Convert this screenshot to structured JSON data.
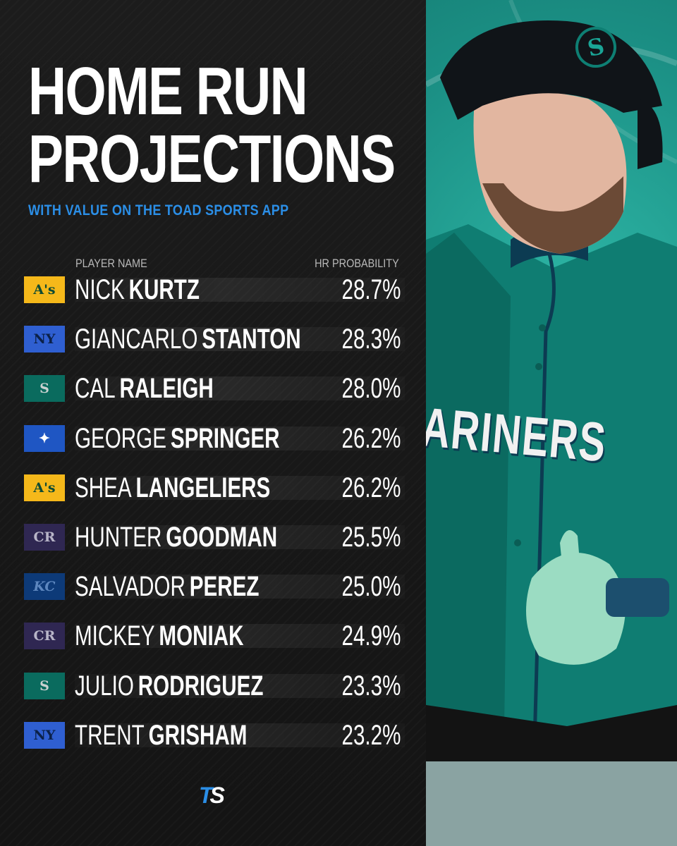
{
  "title": {
    "line1": "HOME RUN",
    "line2": "PROJECTIONS"
  },
  "subtitle": "WITH VALUE ON THE TOAD SPORTS APP",
  "columns": {
    "name": "PLAYER NAME",
    "probability": "HR PROBABILITY"
  },
  "players": [
    {
      "first": "NICK",
      "last": "KURTZ",
      "value": "28.7%",
      "team_icon": "athletics-logo-icon",
      "team_class": "ath",
      "logo_text": "A's"
    },
    {
      "first": "GIANCARLO",
      "last": "STANTON",
      "value": "28.3%",
      "team_icon": "yankees-logo-icon",
      "team_class": "nyy",
      "logo_text": "NY"
    },
    {
      "first": "CAL",
      "last": "RALEIGH",
      "value": "28.0%",
      "team_icon": "mariners-logo-icon",
      "team_class": "sea",
      "logo_text": "S"
    },
    {
      "first": "GEORGE",
      "last": "SPRINGER",
      "value": "26.2%",
      "team_icon": "blue-jays-logo-icon",
      "team_class": "tor",
      "logo_text": "✦"
    },
    {
      "first": "SHEA",
      "last": "LANGELIERS",
      "value": "26.2%",
      "team_icon": "athletics-logo-icon",
      "team_class": "ath",
      "logo_text": "A's"
    },
    {
      "first": "HUNTER",
      "last": "GOODMAN",
      "value": "25.5%",
      "team_icon": "rockies-logo-icon",
      "team_class": "col",
      "logo_text": "CR"
    },
    {
      "first": "SALVADOR",
      "last": "PEREZ",
      "value": "25.0%",
      "team_icon": "royals-logo-icon",
      "team_class": "kc",
      "logo_text": "KC"
    },
    {
      "first": "MICKEY",
      "last": "MONIAK",
      "value": "24.9%",
      "team_icon": "rockies-logo-icon",
      "team_class": "col",
      "logo_text": "CR"
    },
    {
      "first": "JULIO",
      "last": "RODRIGUEZ",
      "value": "23.3%",
      "team_icon": "mariners-logo-icon",
      "team_class": "sea",
      "logo_text": "S"
    },
    {
      "first": "TRENT",
      "last": "GRISHAM",
      "value": "23.2%",
      "team_icon": "yankees-logo-icon",
      "team_class": "nyy",
      "logo_text": "NY"
    }
  ],
  "brand": {
    "part1": "T",
    "part2": "S"
  },
  "photo": {
    "jersey_text": "ARINERS",
    "helmet_logo": "S"
  },
  "colors": {
    "accent": "#2b8ee6",
    "background": "#161616",
    "teal": "#1b8f84"
  }
}
